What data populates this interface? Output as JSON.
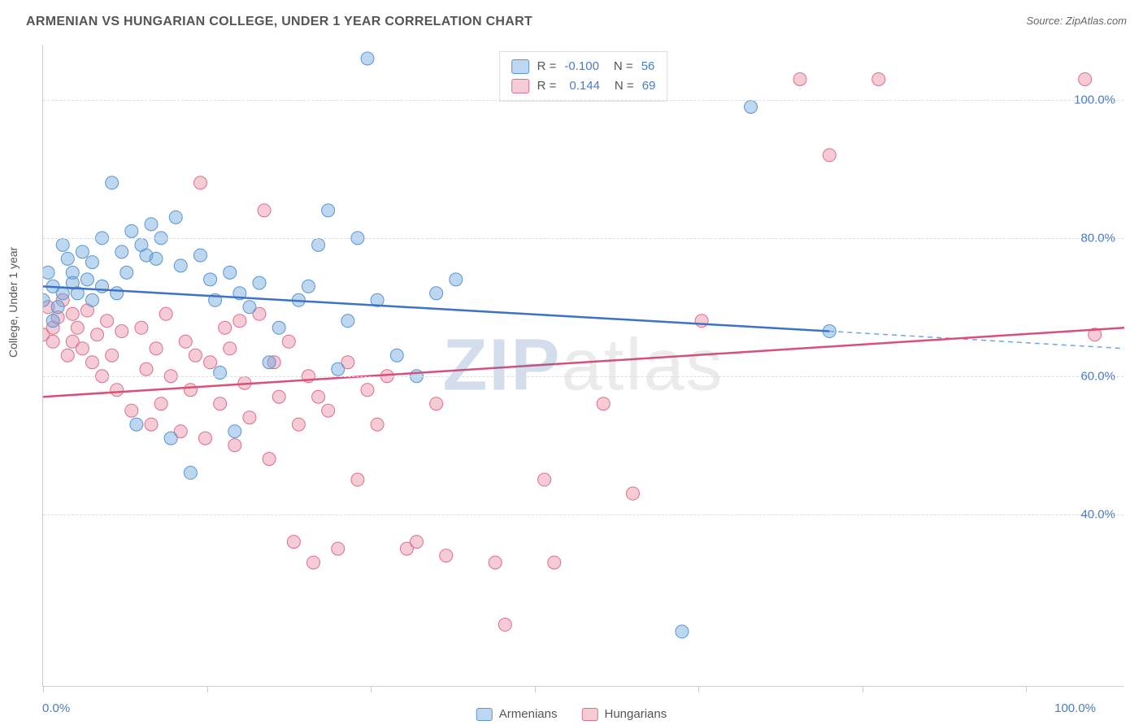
{
  "title": "ARMENIAN VS HUNGARIAN COLLEGE, UNDER 1 YEAR CORRELATION CHART",
  "source": "Source: ZipAtlas.com",
  "y_label": "College, Under 1 year",
  "watermark_a": "ZIP",
  "watermark_b": "atlas",
  "chart": {
    "type": "scatter",
    "background_color": "#ffffff",
    "grid_color": "#dddddd",
    "axis_color": "#cccccc",
    "xlim": [
      0,
      110
    ],
    "ylim": [
      15,
      108
    ],
    "x_ticks": [
      0,
      16.67,
      33.33,
      50,
      66.67,
      83.33,
      100
    ],
    "x_tick_labels_shown": {
      "0": "0.0%",
      "100": "100.0%"
    },
    "y_ticks": [
      40,
      60,
      80,
      100
    ],
    "y_tick_labels": {
      "40": "40.0%",
      "60": "60.0%",
      "80": "80.0%",
      "100": "100.0%"
    },
    "label_color": "#4a7bc8",
    "label_fontsize": 15,
    "title_fontsize": 16,
    "title_color": "#555555",
    "marker_radius": 8,
    "marker_opacity": 0.55,
    "line_width": 2.5,
    "series": [
      {
        "name": "Armenians",
        "color": "#6da6e0",
        "fill": "rgba(109,166,224,0.45)",
        "stroke": "#5a95d1",
        "r_value": "-0.100",
        "n_value": "56",
        "trend": {
          "x1": 0,
          "y1": 73,
          "x2": 80,
          "y2": 66.5,
          "dash_x2": 110,
          "dash_y2": 64
        },
        "points": [
          [
            0,
            71
          ],
          [
            0.5,
            75
          ],
          [
            1,
            73
          ],
          [
            1,
            68
          ],
          [
            1.5,
            70
          ],
          [
            2,
            79
          ],
          [
            2,
            72
          ],
          [
            2.5,
            77
          ],
          [
            3,
            75
          ],
          [
            3,
            73.5
          ],
          [
            3.5,
            72
          ],
          [
            4,
            78
          ],
          [
            4.5,
            74
          ],
          [
            5,
            71
          ],
          [
            5,
            76.5
          ],
          [
            6,
            80
          ],
          [
            6,
            73
          ],
          [
            7,
            88
          ],
          [
            7.5,
            72
          ],
          [
            8,
            78
          ],
          [
            8.5,
            75
          ],
          [
            9,
            81
          ],
          [
            9.5,
            53
          ],
          [
            10,
            79
          ],
          [
            10.5,
            77.5
          ],
          [
            11,
            82
          ],
          [
            11.5,
            77
          ],
          [
            12,
            80
          ],
          [
            13,
            51
          ],
          [
            13.5,
            83
          ],
          [
            14,
            76
          ],
          [
            15,
            46
          ],
          [
            16,
            77.5
          ],
          [
            17,
            74
          ],
          [
            17.5,
            71
          ],
          [
            18,
            60.5
          ],
          [
            19,
            75
          ],
          [
            19.5,
            52
          ],
          [
            20,
            72
          ],
          [
            21,
            70
          ],
          [
            22,
            73.5
          ],
          [
            23,
            62
          ],
          [
            24,
            67
          ],
          [
            26,
            71
          ],
          [
            27,
            73
          ],
          [
            28,
            79
          ],
          [
            29,
            84
          ],
          [
            30,
            61
          ],
          [
            31,
            68
          ],
          [
            32,
            80
          ],
          [
            33,
            106
          ],
          [
            34,
            71
          ],
          [
            36,
            63
          ],
          [
            38,
            60
          ],
          [
            40,
            72
          ],
          [
            42,
            74
          ],
          [
            65,
            23
          ],
          [
            72,
            99
          ],
          [
            80,
            66.5
          ]
        ]
      },
      {
        "name": "Hungarians",
        "color": "#e88ba3",
        "fill": "rgba(232,139,163,0.45)",
        "stroke": "#dd6f8e",
        "r_value": "0.144",
        "n_value": "69",
        "trend": {
          "x1": 0,
          "y1": 57,
          "x2": 110,
          "y2": 67
        },
        "points": [
          [
            0,
            66
          ],
          [
            0.5,
            70
          ],
          [
            1,
            67
          ],
          [
            1,
            65
          ],
          [
            1.5,
            68.5
          ],
          [
            2,
            71
          ],
          [
            2.5,
            63
          ],
          [
            3,
            69
          ],
          [
            3,
            65
          ],
          [
            3.5,
            67
          ],
          [
            4,
            64
          ],
          [
            4.5,
            69.5
          ],
          [
            5,
            62
          ],
          [
            5.5,
            66
          ],
          [
            6,
            60
          ],
          [
            6.5,
            68
          ],
          [
            7,
            63
          ],
          [
            7.5,
            58
          ],
          [
            8,
            66.5
          ],
          [
            9,
            55
          ],
          [
            10,
            67
          ],
          [
            10.5,
            61
          ],
          [
            11,
            53
          ],
          [
            11.5,
            64
          ],
          [
            12,
            56
          ],
          [
            12.5,
            69
          ],
          [
            13,
            60
          ],
          [
            14,
            52
          ],
          [
            14.5,
            65
          ],
          [
            15,
            58
          ],
          [
            15.5,
            63
          ],
          [
            16,
            88
          ],
          [
            16.5,
            51
          ],
          [
            17,
            62
          ],
          [
            18,
            56
          ],
          [
            18.5,
            67
          ],
          [
            19,
            64
          ],
          [
            19.5,
            50
          ],
          [
            20,
            68
          ],
          [
            20.5,
            59
          ],
          [
            21,
            54
          ],
          [
            22,
            69
          ],
          [
            22.5,
            84
          ],
          [
            23,
            48
          ],
          [
            23.5,
            62
          ],
          [
            24,
            57
          ],
          [
            25,
            65
          ],
          [
            25.5,
            36
          ],
          [
            26,
            53
          ],
          [
            27,
            60
          ],
          [
            27.5,
            33
          ],
          [
            28,
            57
          ],
          [
            29,
            55
          ],
          [
            30,
            35
          ],
          [
            31,
            62
          ],
          [
            32,
            45
          ],
          [
            33,
            58
          ],
          [
            34,
            53
          ],
          [
            35,
            60
          ],
          [
            37,
            35
          ],
          [
            38,
            36
          ],
          [
            40,
            56
          ],
          [
            41,
            34
          ],
          [
            46,
            33
          ],
          [
            47,
            24
          ],
          [
            51,
            45
          ],
          [
            52,
            33
          ],
          [
            57,
            56
          ],
          [
            60,
            43
          ],
          [
            67,
            68
          ],
          [
            77,
            103
          ],
          [
            80,
            92
          ],
          [
            85,
            103
          ],
          [
            106,
            103
          ],
          [
            107,
            66
          ]
        ]
      }
    ]
  },
  "legend_top": {
    "r_label": "R =",
    "n_label": "N ="
  },
  "legend_bottom": {
    "items": [
      "Armenians",
      "Hungarians"
    ]
  }
}
